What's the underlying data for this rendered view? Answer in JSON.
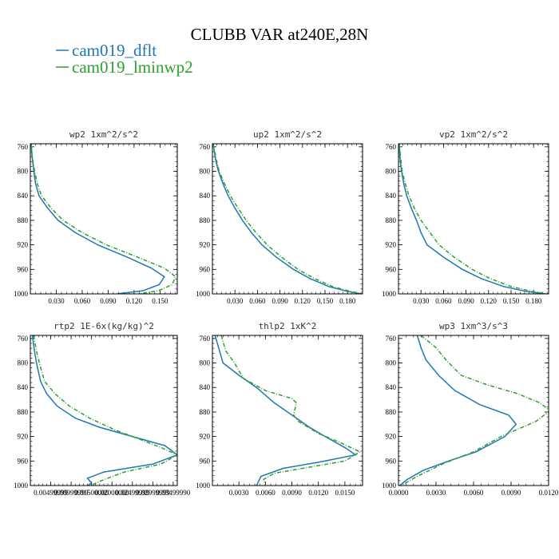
{
  "figure": {
    "title": "CLUBB VAR at240E,28N"
  },
  "legend": [
    {
      "label": "cam019_dflt",
      "color": "#1f77b4",
      "dash": "solid"
    },
    {
      "label": "cam019_lminwp2",
      "color": "#2ca02c",
      "dash": "dashed"
    }
  ],
  "chart_data": [
    {
      "type": "line",
      "title": "wp2  1xm^2/s^2",
      "y_ticks": [
        "760",
        "800",
        "840",
        "880",
        "920",
        "960",
        "1000"
      ],
      "x_ticks": [
        "0.030",
        "0.060",
        "0.090",
        "0.120",
        "0.150"
      ],
      "x_tick_values": [
        0.03,
        0.06,
        0.09,
        0.12,
        0.15
      ],
      "xlim": [
        0,
        0.17
      ],
      "ylim": [
        1000,
        755
      ],
      "series": [
        {
          "name": "cam019_dflt",
          "points": [
            [
              0.001,
              755
            ],
            [
              0.002,
              775
            ],
            [
              0.004,
              800
            ],
            [
              0.006,
              820
            ],
            [
              0.01,
              840
            ],
            [
              0.02,
              860
            ],
            [
              0.032,
              880
            ],
            [
              0.052,
              900
            ],
            [
              0.078,
              920
            ],
            [
              0.112,
              940
            ],
            [
              0.14,
              958
            ],
            [
              0.155,
              972
            ],
            [
              0.149,
              985
            ],
            [
              0.13,
              995
            ],
            [
              0.1,
              1000
            ]
          ]
        },
        {
          "name": "cam019_lminwp2",
          "points": [
            [
              0.001,
              755
            ],
            [
              0.002,
              775
            ],
            [
              0.005,
              800
            ],
            [
              0.008,
              820
            ],
            [
              0.013,
              840
            ],
            [
              0.024,
              860
            ],
            [
              0.038,
              880
            ],
            [
              0.06,
              900
            ],
            [
              0.088,
              920
            ],
            [
              0.124,
              940
            ],
            [
              0.155,
              958
            ],
            [
              0.168,
              972
            ],
            [
              0.164,
              985
            ],
            [
              0.148,
              995
            ],
            [
              0.125,
              1000
            ]
          ]
        }
      ]
    },
    {
      "type": "line",
      "title": "up2  1xm^2/s^2",
      "y_ticks": [
        "760",
        "800",
        "840",
        "880",
        "920",
        "960",
        "1000"
      ],
      "x_ticks": [
        "0.030",
        "0.060",
        "0.090",
        "0.120",
        "0.150",
        "0.180"
      ],
      "x_tick_values": [
        0.03,
        0.06,
        0.09,
        0.12,
        0.15,
        0.18
      ],
      "xlim": [
        0,
        0.2
      ],
      "ylim": [
        1000,
        755
      ],
      "series": [
        {
          "name": "cam019_dflt",
          "points": [
            [
              0.001,
              755
            ],
            [
              0.004,
              780
            ],
            [
              0.008,
              800
            ],
            [
              0.014,
              820
            ],
            [
              0.021,
              840
            ],
            [
              0.03,
              860
            ],
            [
              0.04,
              880
            ],
            [
              0.052,
              900
            ],
            [
              0.066,
              920
            ],
            [
              0.085,
              940
            ],
            [
              0.108,
              960
            ],
            [
              0.13,
              975
            ],
            [
              0.155,
              988
            ],
            [
              0.18,
              996
            ],
            [
              0.198,
              1000
            ]
          ]
        },
        {
          "name": "cam019_lminwp2",
          "points": [
            [
              0.001,
              755
            ],
            [
              0.005,
              780
            ],
            [
              0.009,
              800
            ],
            [
              0.016,
              820
            ],
            [
              0.024,
              840
            ],
            [
              0.034,
              860
            ],
            [
              0.045,
              880
            ],
            [
              0.058,
              900
            ],
            [
              0.073,
              920
            ],
            [
              0.092,
              940
            ],
            [
              0.114,
              960
            ],
            [
              0.136,
              975
            ],
            [
              0.16,
              988
            ],
            [
              0.184,
              996
            ],
            [
              0.2,
              1000
            ]
          ]
        }
      ]
    },
    {
      "type": "line",
      "title": "vp2  1xm^2/s^2",
      "y_ticks": [
        "760",
        "800",
        "840",
        "880",
        "920",
        "960",
        "1000"
      ],
      "x_ticks": [
        "0.030",
        "0.060",
        "0.090",
        "0.120",
        "0.150",
        "0.180"
      ],
      "x_tick_values": [
        0.03,
        0.06,
        0.09,
        0.12,
        0.15,
        0.18
      ],
      "xlim": [
        0,
        0.2
      ],
      "ylim": [
        1000,
        755
      ],
      "series": [
        {
          "name": "cam019_dflt",
          "points": [
            [
              0.001,
              755
            ],
            [
              0.002,
              780
            ],
            [
              0.004,
              800
            ],
            [
              0.007,
              820
            ],
            [
              0.011,
              840
            ],
            [
              0.017,
              860
            ],
            [
              0.024,
              880
            ],
            [
              0.03,
              900
            ],
            [
              0.038,
              920
            ],
            [
              0.06,
              940
            ],
            [
              0.085,
              960
            ],
            [
              0.11,
              975
            ],
            [
              0.14,
              988
            ],
            [
              0.17,
              996
            ],
            [
              0.195,
              1000
            ]
          ]
        },
        {
          "name": "cam019_lminwp2",
          "points": [
            [
              0.001,
              755
            ],
            [
              0.003,
              780
            ],
            [
              0.005,
              800
            ],
            [
              0.009,
              820
            ],
            [
              0.014,
              840
            ],
            [
              0.021,
              860
            ],
            [
              0.03,
              880
            ],
            [
              0.042,
              900
            ],
            [
              0.054,
              920
            ],
            [
              0.074,
              940
            ],
            [
              0.098,
              960
            ],
            [
              0.122,
              975
            ],
            [
              0.15,
              988
            ],
            [
              0.178,
              996
            ],
            [
              0.2,
              1000
            ]
          ]
        }
      ]
    },
    {
      "type": "line",
      "title": "rtp2  1E-6x(kg/kg)^2",
      "y_ticks": [
        "760",
        "800",
        "840",
        "880",
        "920",
        "960",
        "1000"
      ],
      "x_ticks": [
        "0.00499999",
        "0.00999999",
        "0.01500000",
        "0.02000000",
        "0.02499999",
        "0.02999999",
        "0.03499990"
      ],
      "x_tick_values": [
        0.005,
        0.01,
        0.015,
        0.02,
        0.025,
        0.03,
        0.035
      ],
      "xlim": [
        0,
        0.036
      ],
      "ylim": [
        1000,
        755
      ],
      "series": [
        {
          "name": "cam019_dflt",
          "points": [
            [
              0.0005,
              755
            ],
            [
              0.001,
              780
            ],
            [
              0.0015,
              800
            ],
            [
              0.0025,
              830
            ],
            [
              0.004,
              850
            ],
            [
              0.0065,
              870
            ],
            [
              0.011,
              890
            ],
            [
              0.017,
              905
            ],
            [
              0.025,
              920
            ],
            [
              0.033,
              935
            ],
            [
              0.036,
              950
            ],
            [
              0.03,
              965
            ],
            [
              0.018,
              978
            ],
            [
              0.014,
              988
            ],
            [
              0.015,
              996
            ],
            [
              0.014,
              1000
            ]
          ]
        },
        {
          "name": "cam019_lminwp2",
          "points": [
            [
              0.0008,
              755
            ],
            [
              0.0015,
              780
            ],
            [
              0.0022,
              800
            ],
            [
              0.0035,
              830
            ],
            [
              0.006,
              850
            ],
            [
              0.0095,
              870
            ],
            [
              0.0145,
              890
            ],
            [
              0.021,
              910
            ],
            [
              0.027,
              925
            ],
            [
              0.032,
              938
            ],
            [
              0.036,
              950
            ],
            [
              0.032,
              965
            ],
            [
              0.023,
              978
            ],
            [
              0.019,
              988
            ],
            [
              0.016,
              996
            ],
            [
              0.015,
              1000
            ]
          ]
        }
      ]
    },
    {
      "type": "line",
      "title": "thlp2  1xK^2",
      "y_ticks": [
        "760",
        "800",
        "840",
        "880",
        "920",
        "960",
        "1000"
      ],
      "x_ticks": [
        "0.0030",
        "0.0060",
        "0.0090",
        "0.0120",
        "0.0150"
      ],
      "x_tick_values": [
        0.003,
        0.006,
        0.009,
        0.012,
        0.015
      ],
      "xlim": [
        0,
        0.017
      ],
      "ylim": [
        1000,
        755
      ],
      "series": [
        {
          "name": "cam019_dflt",
          "points": [
            [
              0.0003,
              755
            ],
            [
              0.0008,
              780
            ],
            [
              0.0012,
              800
            ],
            [
              0.003,
              820
            ],
            [
              0.005,
              840
            ],
            [
              0.007,
              865
            ],
            [
              0.009,
              885
            ],
            [
              0.011,
              905
            ],
            [
              0.013,
              922
            ],
            [
              0.015,
              938
            ],
            [
              0.0162,
              950
            ],
            [
              0.012,
              962
            ],
            [
              0.008,
              972
            ],
            [
              0.0055,
              985
            ],
            [
              0.005,
              1000
            ]
          ]
        },
        {
          "name": "cam019_lminwp2",
          "points": [
            [
              0.001,
              755
            ],
            [
              0.0015,
              780
            ],
            [
              0.0025,
              800
            ],
            [
              0.0035,
              825
            ],
            [
              0.006,
              845
            ],
            [
              0.009,
              858
            ],
            [
              0.0095,
              865
            ],
            [
              0.0092,
              885
            ],
            [
              0.0097,
              895
            ],
            [
              0.012,
              915
            ],
            [
              0.0145,
              930
            ],
            [
              0.0167,
              945
            ],
            [
              0.015,
              960
            ],
            [
              0.011,
              970
            ],
            [
              0.007,
              980
            ],
            [
              0.0058,
              990
            ],
            [
              0.006,
              1000
            ]
          ]
        }
      ]
    },
    {
      "type": "line",
      "title": "wp3  1xm^3/s^3",
      "y_ticks": [
        "760",
        "800",
        "840",
        "880",
        "920",
        "960",
        "1000"
      ],
      "x_ticks": [
        "0.0000",
        "0.0030",
        "0.0060",
        "0.0090",
        "0.0120"
      ],
      "x_tick_values": [
        0,
        0.003,
        0.006,
        0.009,
        0.012
      ],
      "xlim": [
        0,
        0.012
      ],
      "ylim": [
        1000,
        755
      ],
      "series": [
        {
          "name": "cam019_dflt",
          "points": [
            [
              0.0015,
              755
            ],
            [
              0.0018,
              775
            ],
            [
              0.0022,
              795
            ],
            [
              0.0032,
              820
            ],
            [
              0.0045,
              845
            ],
            [
              0.0065,
              868
            ],
            [
              0.0088,
              885
            ],
            [
              0.0094,
              900
            ],
            [
              0.0085,
              920
            ],
            [
              0.0062,
              945
            ],
            [
              0.004,
              960
            ],
            [
              0.002,
              975
            ],
            [
              0.0007,
              990
            ],
            [
              0.0001,
              1000
            ]
          ]
        },
        {
          "name": "cam019_lminwp2",
          "points": [
            [
              0.0018,
              755
            ],
            [
              0.003,
              775
            ],
            [
              0.0038,
              795
            ],
            [
              0.005,
              820
            ],
            [
              0.007,
              835
            ],
            [
              0.0095,
              850
            ],
            [
              0.0113,
              865
            ],
            [
              0.0121,
              878
            ],
            [
              0.011,
              895
            ],
            [
              0.0082,
              920
            ],
            [
              0.006,
              945
            ],
            [
              0.0035,
              965
            ],
            [
              0.0015,
              985
            ],
            [
              0.0002,
              1000
            ]
          ]
        }
      ]
    }
  ]
}
